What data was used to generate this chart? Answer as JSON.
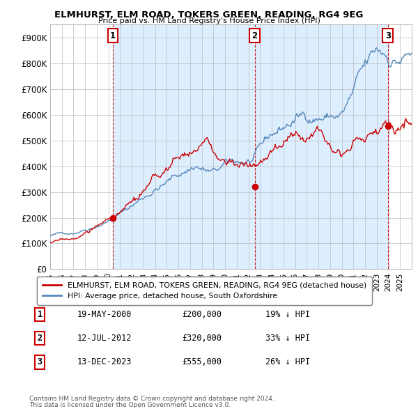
{
  "title": "ELMHURST, ELM ROAD, TOKERS GREEN, READING, RG4 9EG",
  "subtitle": "Price paid vs. HM Land Registry's House Price Index (HPI)",
  "ylabel_ticks": [
    "£0",
    "£100K",
    "£200K",
    "£300K",
    "£400K",
    "£500K",
    "£600K",
    "£700K",
    "£800K",
    "£900K"
  ],
  "ylim": [
    0,
    950000
  ],
  "xlim_start": 1995.0,
  "xlim_end": 2026.0,
  "sale_color": "#cc0000",
  "hpi_color": "#5588bb",
  "shade_color": "#ddeeff",
  "sale_label": "ELMHURST, ELM ROAD, TOKERS GREEN, READING, RG4 9EG (detached house)",
  "hpi_label": "HPI: Average price, detached house, South Oxfordshire",
  "sales": [
    {
      "num": 1,
      "date_str": "19-MAY-2000",
      "date_x": 2000.38,
      "price": 200000,
      "pct": "19%"
    },
    {
      "num": 2,
      "date_str": "12-JUL-2012",
      "date_x": 2012.54,
      "price": 320000,
      "pct": "33%"
    },
    {
      "num": 3,
      "date_str": "13-DEC-2023",
      "date_x": 2023.96,
      "price": 555000,
      "pct": "26%"
    }
  ],
  "footer1": "Contains HM Land Registry data © Crown copyright and database right 2024.",
  "footer2": "This data is licensed under the Open Government Licence v3.0."
}
